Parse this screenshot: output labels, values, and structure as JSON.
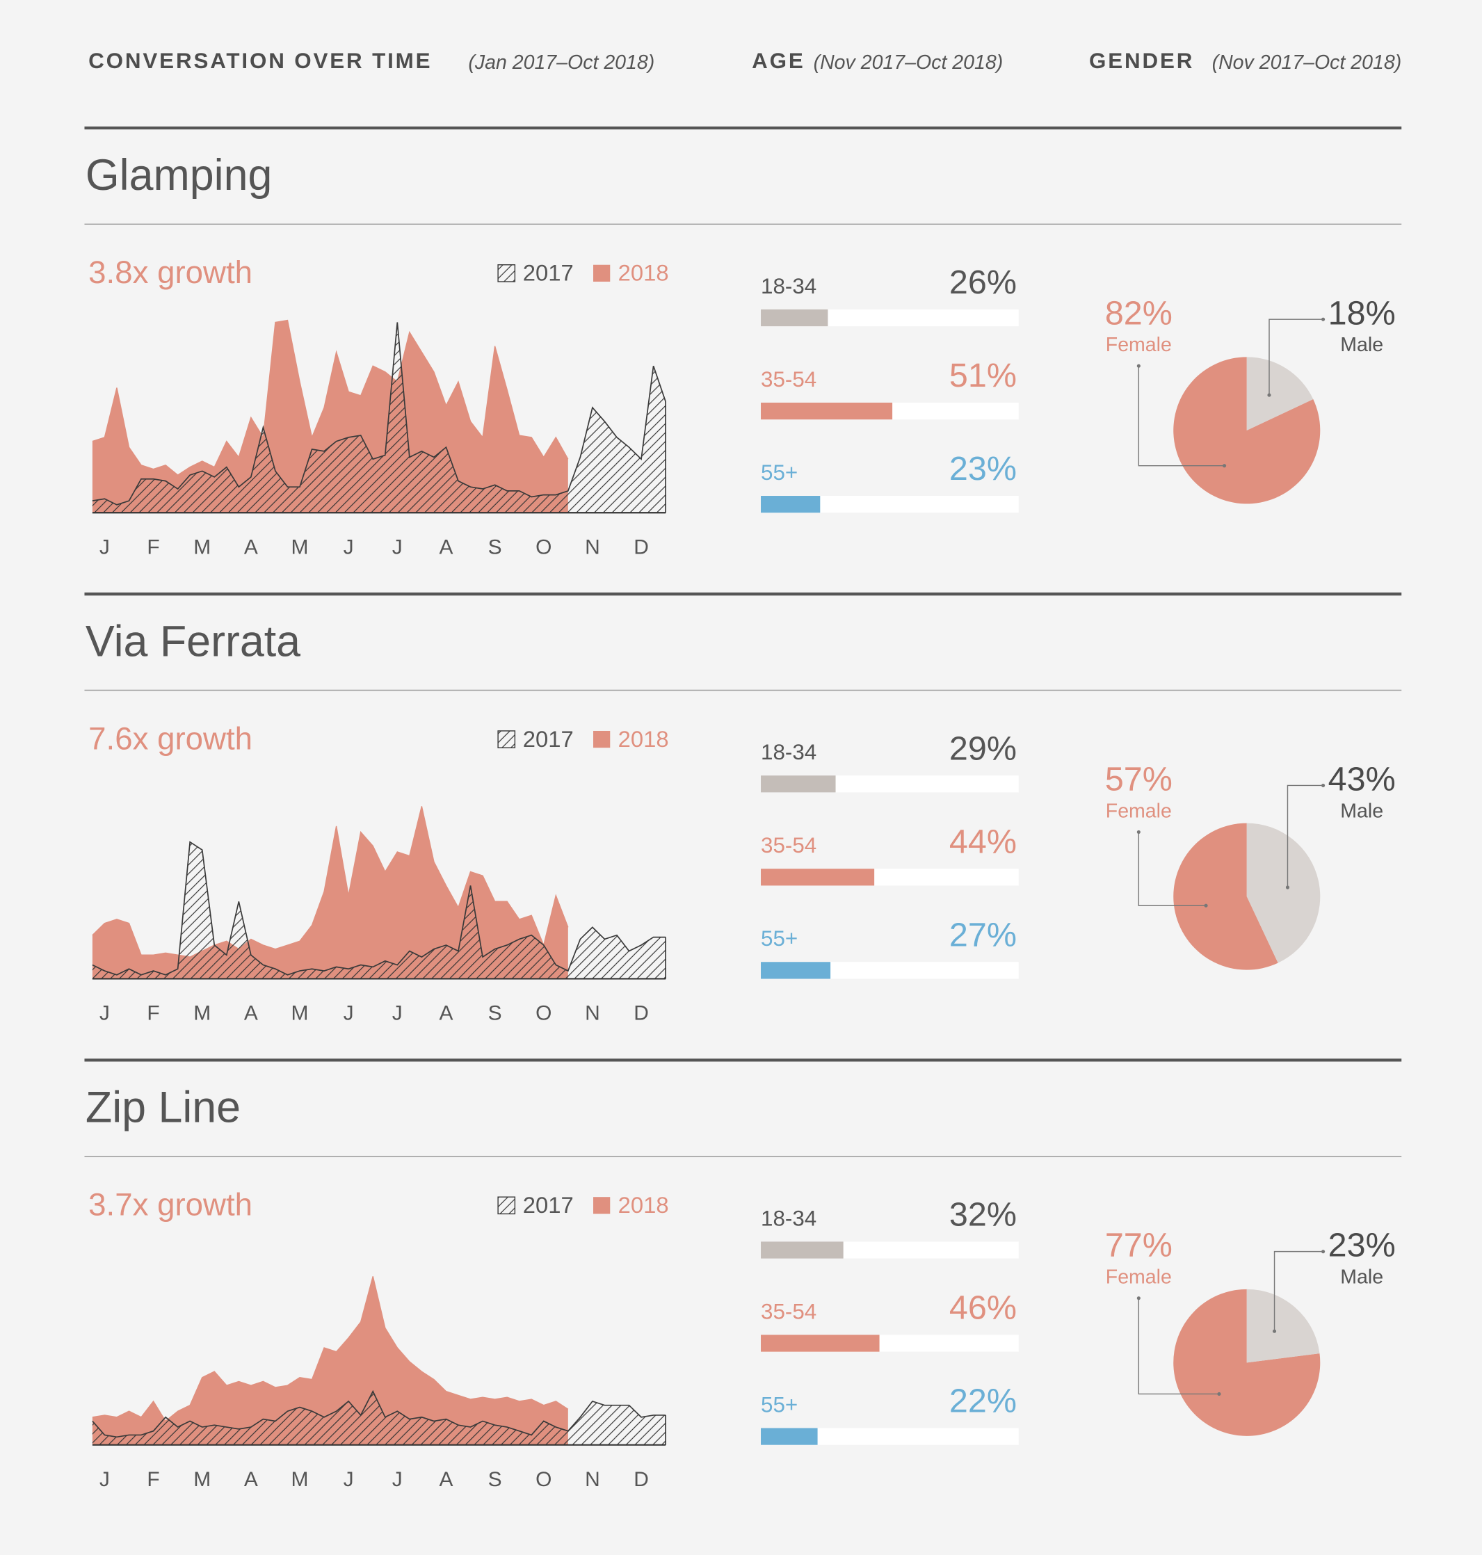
{
  "header": {
    "over_time": "CONVERSATION OVER TIME",
    "over_time_range": "(Jan 2017–Oct 2018)",
    "age": "AGE",
    "age_range": "(Nov 2017–Oct 2018)",
    "gender": "GENDER",
    "gender_range": "(Nov 2017–Oct 2018)"
  },
  "chart_data": [
    {
      "type": "area",
      "title": "Glamping",
      "subtitle": "3.8x growth",
      "x": [
        -0.25,
        0,
        0.25,
        0.5,
        0.75,
        1,
        1.25,
        1.5,
        1.75,
        2,
        2.25,
        2.5,
        2.75,
        3,
        3.25,
        3.5,
        3.75,
        4,
        4.25,
        4.5,
        4.75,
        5,
        5.25,
        5.5,
        5.75,
        6,
        6.25,
        6.5,
        6.75,
        7,
        7.25,
        7.5,
        7.75,
        8,
        8.25,
        8.5,
        8.75,
        9,
        9.25,
        9.5,
        9.75,
        10,
        10.25,
        10.5,
        10.75,
        11,
        11.25,
        11.5
      ],
      "xlim": [
        -0.25,
        11.5
      ],
      "ylim": [
        0,
        100
      ],
      "xticks": [
        {
          "value": 0,
          "label": "J"
        },
        {
          "value": 1,
          "label": "F"
        },
        {
          "value": 2,
          "label": "M"
        },
        {
          "value": 3,
          "label": "A"
        },
        {
          "value": 4,
          "label": "M"
        },
        {
          "value": 5,
          "label": "J"
        },
        {
          "value": 6,
          "label": "J"
        },
        {
          "value": 7,
          "label": "A"
        },
        {
          "value": 8,
          "label": "S"
        },
        {
          "value": 9,
          "label": "O"
        },
        {
          "value": 10,
          "label": "N"
        },
        {
          "value": 11,
          "label": "D"
        }
      ],
      "series": [
        {
          "name": "2017",
          "color": "#3a3a3a",
          "pattern": "hatch",
          "values": [
            6,
            7,
            4,
            6,
            17,
            17,
            16,
            12,
            19,
            21,
            18,
            23,
            13,
            18,
            43,
            21,
            13,
            13,
            32,
            31,
            36,
            38,
            39,
            27,
            29,
            96,
            28,
            31,
            28,
            33,
            16,
            13,
            12,
            14,
            11,
            11,
            8,
            9,
            9,
            11,
            28,
            53,
            46,
            38,
            33,
            27,
            74,
            56
          ]
        },
        {
          "name": "2018",
          "color": "#e0907f",
          "values": [
            36,
            38,
            63,
            33,
            24,
            22,
            24,
            19,
            23,
            26,
            23,
            36,
            28,
            48,
            38,
            96,
            97,
            66,
            38,
            53,
            81,
            61,
            59,
            74,
            71,
            66,
            91,
            81,
            71,
            54,
            66,
            46,
            38,
            84,
            62,
            39,
            38,
            28,
            38,
            27,
            null,
            null,
            null,
            null,
            null,
            null,
            null,
            null
          ]
        }
      ]
    },
    {
      "type": "bar",
      "categories": [
        "18-34",
        "35-54",
        "55+"
      ],
      "values": [
        26,
        51,
        23
      ],
      "value_labels": [
        "26%",
        "51%",
        "23%"
      ],
      "colors": [
        "#c4bdb8",
        "#e0907f",
        "#6aafd6"
      ],
      "xlim": [
        0,
        100
      ]
    },
    {
      "type": "pie",
      "categories": [
        "Female",
        "Male"
      ],
      "values": [
        82,
        18
      ],
      "value_labels": [
        "82%",
        "18%"
      ],
      "colors": [
        "#e0907f",
        "#d9d4d1"
      ]
    },
    {
      "type": "area",
      "title": "Via Ferrata",
      "subtitle": "7.6x growth",
      "x": [
        -0.25,
        0,
        0.25,
        0.5,
        0.75,
        1,
        1.25,
        1.5,
        1.75,
        2,
        2.25,
        2.5,
        2.75,
        3,
        3.25,
        3.5,
        3.75,
        4,
        4.25,
        4.5,
        4.75,
        5,
        5.25,
        5.5,
        5.75,
        6,
        6.25,
        6.5,
        6.75,
        7,
        7.25,
        7.5,
        7.75,
        8,
        8.25,
        8.5,
        8.75,
        9,
        9.25,
        9.5,
        9.75,
        10,
        10.25,
        10.5,
        10.75,
        11,
        11.25,
        11.5
      ],
      "xlim": [
        -0.25,
        11.5
      ],
      "ylim": [
        0,
        100
      ],
      "xticks": [
        {
          "value": 0,
          "label": "J"
        },
        {
          "value": 1,
          "label": "F"
        },
        {
          "value": 2,
          "label": "M"
        },
        {
          "value": 3,
          "label": "A"
        },
        {
          "value": 4,
          "label": "M"
        },
        {
          "value": 5,
          "label": "J"
        },
        {
          "value": 6,
          "label": "J"
        },
        {
          "value": 7,
          "label": "A"
        },
        {
          "value": 8,
          "label": "S"
        },
        {
          "value": 9,
          "label": "O"
        },
        {
          "value": 10,
          "label": "N"
        },
        {
          "value": 11,
          "label": "D"
        }
      ],
      "series": [
        {
          "name": "2017",
          "color": "#3a3a3a",
          "pattern": "hatch",
          "values": [
            7,
            4,
            2,
            5,
            2,
            4,
            2,
            5,
            69,
            65,
            17,
            12,
            39,
            12,
            7,
            5,
            2,
            4,
            5,
            4,
            6,
            5,
            7,
            6,
            9,
            7,
            14,
            11,
            15,
            17,
            14,
            47,
            11,
            15,
            17,
            20,
            22,
            17,
            7,
            4,
            20,
            26,
            20,
            22,
            14,
            17,
            21,
            21
          ]
        },
        {
          "name": "2018",
          "color": "#e0907f",
          "values": [
            22,
            28,
            30,
            28,
            12,
            12,
            13,
            12,
            11,
            14,
            17,
            19,
            15,
            20,
            17,
            15,
            17,
            19,
            27,
            44,
            77,
            42,
            74,
            67,
            54,
            64,
            62,
            87,
            59,
            47,
            36,
            54,
            52,
            39,
            39,
            30,
            32,
            17,
            42,
            26,
            null,
            null,
            null,
            null,
            null,
            null,
            null,
            null
          ]
        }
      ]
    },
    {
      "type": "bar",
      "categories": [
        "18-34",
        "35-54",
        "55+"
      ],
      "values": [
        29,
        44,
        27
      ],
      "value_labels": [
        "29%",
        "44%",
        "27%"
      ],
      "colors": [
        "#c4bdb8",
        "#e0907f",
        "#6aafd6"
      ],
      "xlim": [
        0,
        100
      ]
    },
    {
      "type": "pie",
      "categories": [
        "Female",
        "Male"
      ],
      "values": [
        57,
        43
      ],
      "value_labels": [
        "57%",
        "43%"
      ],
      "colors": [
        "#e0907f",
        "#d9d4d1"
      ]
    },
    {
      "type": "area",
      "title": "Zip Line",
      "subtitle": "3.7x growth",
      "x": [
        -0.25,
        0,
        0.25,
        0.5,
        0.75,
        1,
        1.25,
        1.5,
        1.75,
        2,
        2.25,
        2.5,
        2.75,
        3,
        3.25,
        3.5,
        3.75,
        4,
        4.25,
        4.5,
        4.75,
        5,
        5.25,
        5.5,
        5.75,
        6,
        6.25,
        6.5,
        6.75,
        7,
        7.25,
        7.5,
        7.75,
        8,
        8.25,
        8.5,
        8.75,
        9,
        9.25,
        9.5,
        9.75,
        10,
        10.25,
        10.5,
        10.75,
        11,
        11.25,
        11.5
      ],
      "xlim": [
        -0.25,
        11.5
      ],
      "ylim": [
        0,
        100
      ],
      "xticks": [
        {
          "value": 0,
          "label": "J"
        },
        {
          "value": 1,
          "label": "F"
        },
        {
          "value": 2,
          "label": "M"
        },
        {
          "value": 3,
          "label": "A"
        },
        {
          "value": 4,
          "label": "M"
        },
        {
          "value": 5,
          "label": "J"
        },
        {
          "value": 6,
          "label": "J"
        },
        {
          "value": 7,
          "label": "A"
        },
        {
          "value": 8,
          "label": "S"
        },
        {
          "value": 9,
          "label": "O"
        },
        {
          "value": 10,
          "label": "N"
        },
        {
          "value": 11,
          "label": "D"
        }
      ],
      "series": [
        {
          "name": "2017",
          "color": "#3a3a3a",
          "pattern": "hatch",
          "values": [
            12,
            5,
            4,
            5,
            5,
            7,
            14,
            9,
            12,
            9,
            10,
            9,
            8,
            9,
            13,
            12,
            17,
            19,
            17,
            14,
            17,
            22,
            15,
            27,
            14,
            17,
            13,
            14,
            12,
            13,
            10,
            9,
            12,
            10,
            9,
            7,
            5,
            12,
            9,
            7,
            14,
            22,
            20,
            20,
            20,
            14,
            15,
            15
          ]
        },
        {
          "name": "2018",
          "color": "#e0907f",
          "values": [
            14,
            15,
            14,
            17,
            14,
            22,
            12,
            17,
            20,
            34,
            37,
            30,
            32,
            30,
            32,
            29,
            30,
            34,
            33,
            49,
            47,
            54,
            62,
            85,
            59,
            49,
            42,
            37,
            33,
            27,
            25,
            23,
            24,
            23,
            24,
            22,
            23,
            20,
            22,
            18,
            null,
            null,
            null,
            null,
            null,
            null,
            null,
            null
          ]
        }
      ]
    },
    {
      "type": "bar",
      "categories": [
        "18-34",
        "35-54",
        "55+"
      ],
      "values": [
        32,
        46,
        22
      ],
      "value_labels": [
        "32%",
        "46%",
        "22%"
      ],
      "colors": [
        "#c4bdb8",
        "#e0907f",
        "#6aafd6"
      ],
      "xlim": [
        0,
        100
      ]
    },
    {
      "type": "pie",
      "categories": [
        "Female",
        "Male"
      ],
      "values": [
        77,
        23
      ],
      "value_labels": [
        "77%",
        "23%"
      ],
      "colors": [
        "#e0907f",
        "#d9d4d1"
      ]
    }
  ]
}
